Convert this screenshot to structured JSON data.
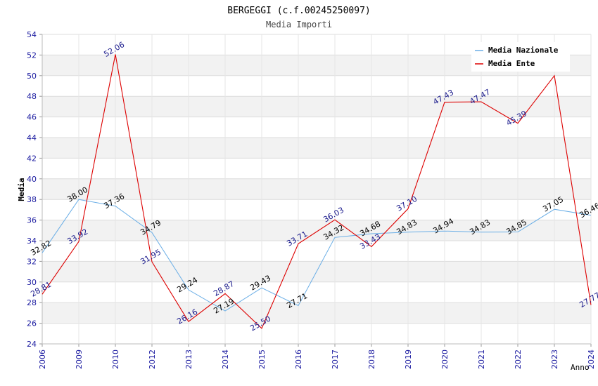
{
  "chart_data": {
    "type": "line",
    "title": "BERGEGGI (c.f.00245250097)",
    "subtitle": "Media Importi",
    "xlabel": "Anno",
    "ylabel": "Media",
    "ylim": [
      24,
      54
    ],
    "yticks": [
      "24",
      "26",
      "28",
      "30",
      "32",
      "34",
      "36",
      "38",
      "40",
      "42",
      "44",
      "46",
      "48",
      "50",
      "52",
      "54"
    ],
    "categories": [
      "2006",
      "2009",
      "2010",
      "2012",
      "2013",
      "2014",
      "2015",
      "2016",
      "2017",
      "2018",
      "2019",
      "2020",
      "2021",
      "2022",
      "2023",
      "2024"
    ],
    "legend_position": "top-right",
    "series": [
      {
        "name": "Media Nazionale",
        "color": "#6aaee6",
        "label_color": "#000000",
        "values": [
          32.82,
          38.0,
          37.36,
          34.79,
          29.24,
          27.19,
          29.43,
          27.71,
          34.32,
          34.68,
          34.83,
          34.94,
          34.83,
          34.85,
          37.05,
          36.46
        ],
        "labels": [
          "32.82",
          "38.00",
          "37.36",
          "34.79",
          "29.24",
          "27.19",
          "29.43",
          "27.71",
          "34.32",
          "34.68",
          "34.83",
          "34.94",
          "34.83",
          "34.85",
          "37.05",
          "36.46"
        ]
      },
      {
        "name": "Media Ente",
        "color": "#dd0000",
        "label_color": "#1a1a8c",
        "values": [
          28.81,
          33.92,
          52.06,
          31.95,
          26.16,
          28.87,
          25.5,
          33.71,
          36.03,
          33.43,
          37.1,
          47.43,
          47.47,
          45.39,
          50.0,
          27.77
        ],
        "labels": [
          "28.81",
          "33.92",
          "52.06",
          "31.95",
          "26.16",
          "28.87",
          "25.50",
          "33.71",
          "36.03",
          "33.43",
          "37.10",
          "47.43",
          "47.47",
          "45.39",
          "",
          "27.77"
        ]
      }
    ]
  }
}
